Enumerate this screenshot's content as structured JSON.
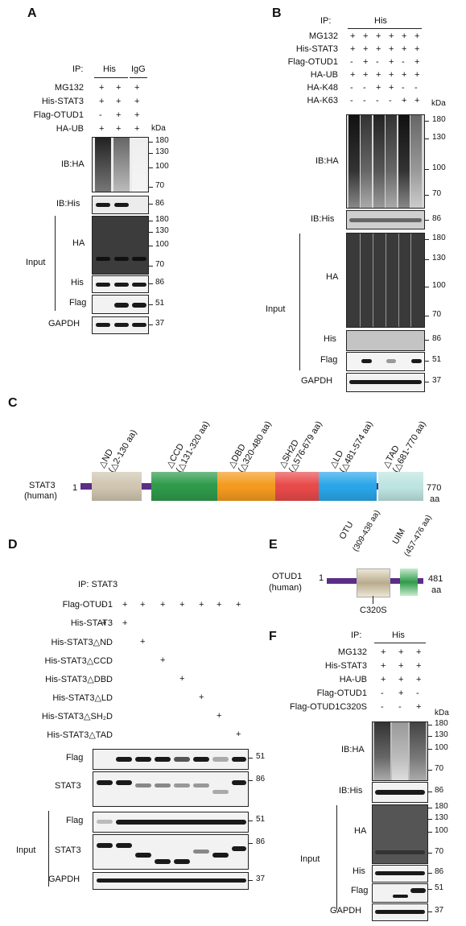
{
  "panel_A": {
    "letter": "A",
    "ip_label": "IP:",
    "ip_his": "His",
    "ip_igg": "IgG",
    "rows": [
      {
        "name": "MG132",
        "marks": [
          "+",
          "+",
          "+"
        ]
      },
      {
        "name": "His-STAT3",
        "marks": [
          "+",
          "+",
          "+"
        ]
      },
      {
        "name": "Flag-OTUD1",
        "marks": [
          "-",
          "+",
          "+"
        ]
      },
      {
        "name": "HA-UB",
        "marks": [
          "+",
          "+",
          "+"
        ]
      }
    ],
    "kda": "kDa",
    "ib_ha": "IB:HA",
    "ib_his": "IB:His",
    "input": "Input",
    "ha": "HA",
    "his": "His",
    "flag": "Flag",
    "gapdh": "GAPDH",
    "mw_ibha": [
      "180",
      "130",
      "100",
      "70"
    ],
    "mw_ibhis": "86",
    "mw_ha": [
      "180",
      "130",
      "100",
      "70"
    ],
    "mw_his": "86",
    "mw_flag": "51",
    "mw_gapdh": "37"
  },
  "panel_B": {
    "letter": "B",
    "ip_label": "IP:",
    "ip_his": "His",
    "rows": [
      {
        "name": "MG132",
        "marks": [
          "+",
          "+",
          "+",
          "+",
          "+",
          "+"
        ]
      },
      {
        "name": "His-STAT3",
        "marks": [
          "+",
          "+",
          "+",
          "+",
          "+",
          "+"
        ]
      },
      {
        "name": "Flag-OTUD1",
        "marks": [
          "-",
          "+",
          "-",
          "+",
          "-",
          "+"
        ]
      },
      {
        "name": "HA-UB",
        "marks": [
          "+",
          "+",
          "+",
          "+",
          "+",
          "+"
        ]
      },
      {
        "name": "HA-K48",
        "marks": [
          "-",
          "-",
          "+",
          "+",
          "-",
          "-"
        ]
      },
      {
        "name": "HA-K63",
        "marks": [
          "-",
          "-",
          "-",
          "-",
          "+",
          "+"
        ]
      }
    ],
    "kda": "kDa",
    "ib_ha": "IB:HA",
    "ib_his": "IB:His",
    "input": "Input",
    "ha": "HA",
    "his": "His",
    "flag": "Flag",
    "gapdh": "GAPDH",
    "mw_ibha": [
      "180",
      "130",
      "100",
      "70"
    ],
    "mw_ibhis": "86",
    "mw_ha": [
      "180",
      "130",
      "100",
      "70"
    ],
    "mw_his": "86",
    "mw_flag": "51",
    "mw_gapdh": "37"
  },
  "panel_C": {
    "letter": "C",
    "protein": "STAT3",
    "species": "(human)",
    "start": "1",
    "end": "770",
    "unit": "aa",
    "domains": [
      {
        "name": "△ND",
        "range": "(△2-130 aa)",
        "color": "#cfc5b0"
      },
      {
        "name": "△CCD",
        "range": "(△131-320 aa)",
        "color": "#2e9a4a"
      },
      {
        "name": "△DBD",
        "range": "(△320-480 aa)",
        "color": "#f39a1f"
      },
      {
        "name": "△SH2D",
        "range": "(△576-679 aa)",
        "color": "#e84a4a"
      },
      {
        "name": "△LD",
        "range": "(△481-574 aa)",
        "color": "#2aa6e8"
      },
      {
        "name": "△TAD",
        "range": "(△681-770 aa)",
        "color": "#bde4e0"
      }
    ]
  },
  "panel_D": {
    "letter": "D",
    "ip": "IP: STAT3",
    "rows": [
      {
        "name": "Flag-OTUD1",
        "marks": [
          "-",
          "+",
          "+",
          "+",
          "+",
          "+",
          "+",
          "+"
        ]
      },
      {
        "name": "His-STAT3",
        "marks": [
          "+",
          "+",
          "",
          "",
          "",
          "",
          "",
          ""
        ]
      },
      {
        "name": "His-STAT3△ND",
        "marks": [
          "",
          "",
          "+",
          "",
          "",
          "",
          "",
          ""
        ]
      },
      {
        "name": "His-STAT3△CCD",
        "marks": [
          "",
          "",
          "",
          "+",
          "",
          "",
          "",
          ""
        ]
      },
      {
        "name": "His-STAT3△DBD",
        "marks": [
          "",
          "",
          "",
          "",
          "+",
          "",
          "",
          ""
        ]
      },
      {
        "name": "His-STAT3△LD",
        "marks": [
          "",
          "",
          "",
          "",
          "",
          "+",
          "",
          ""
        ]
      },
      {
        "name": "His-STAT3△SH₂D",
        "marks": [
          "",
          "",
          "",
          "",
          "",
          "",
          "+",
          ""
        ]
      },
      {
        "name": "His-STAT3△TAD",
        "marks": [
          "",
          "",
          "",
          "",
          "",
          "",
          "",
          "+"
        ]
      }
    ],
    "flag": "Flag",
    "stat3": "STAT3",
    "input": "Input",
    "gapdh": "GAPDH",
    "mw_flag": "51",
    "mw_stat3": "86",
    "mw_flag_in": "51",
    "mw_stat3_in": "86",
    "mw_gapdh": "37"
  },
  "panel_E": {
    "letter": "E",
    "protein": "OTUD1",
    "species": "(human)",
    "start": "1",
    "end": "481",
    "unit": "aa",
    "otu": "OTU",
    "otu_range": "(309-438 aa)",
    "uim": "UIM",
    "uim_range": "(457-476 aa)",
    "mutant": "C320S"
  },
  "panel_F": {
    "letter": "F",
    "ip_label": "IP:",
    "ip_his": "His",
    "rows": [
      {
        "name": "MG132",
        "marks": [
          "+",
          "+",
          "+"
        ]
      },
      {
        "name": "His-STAT3",
        "marks": [
          "+",
          "+",
          "+"
        ]
      },
      {
        "name": "HA-UB",
        "marks": [
          "+",
          "+",
          "+"
        ]
      },
      {
        "name": "Flag-OTUD1",
        "marks": [
          "-",
          "+",
          "-"
        ]
      },
      {
        "name": "Flag-OTUD1C320S",
        "marks": [
          "-",
          "-",
          "+"
        ]
      }
    ],
    "kda": "kDa",
    "ib_ha": "IB:HA",
    "ib_his": "IB:His",
    "input": "Input",
    "ha": "HA",
    "his": "His",
    "flag": "Flag",
    "gapdh": "GAPDH",
    "mw_ibha": [
      "180",
      "130",
      "100",
      "70"
    ],
    "mw_ibhis": "86",
    "mw_ha": [
      "180",
      "130",
      "100",
      "70"
    ],
    "mw_his": "86",
    "mw_flag": "51",
    "mw_gapdh": "37"
  }
}
